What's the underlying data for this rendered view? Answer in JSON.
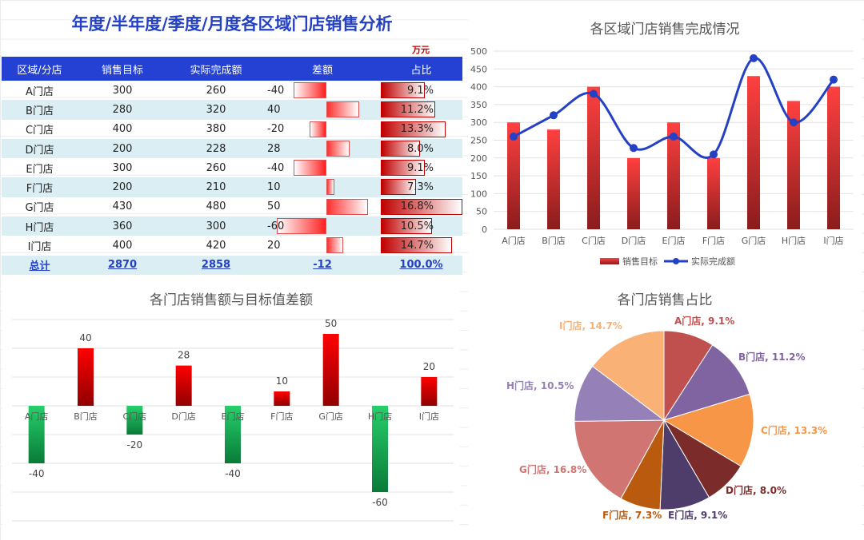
{
  "title": "年度/半年度/季度/月度各区域门店销售分析",
  "unit": "万元",
  "table": {
    "headers": [
      "区域/分店",
      "销售目标",
      "实际完成额",
      "差额",
      "占比"
    ],
    "rows": [
      {
        "store": "A门店",
        "target": "300",
        "actual": "260",
        "diff": "-40",
        "pct": "9.1%"
      },
      {
        "store": "B门店",
        "target": "280",
        "actual": "320",
        "diff": "40",
        "pct": "11.2%"
      },
      {
        "store": "C门店",
        "target": "400",
        "actual": "380",
        "diff": "-20",
        "pct": "13.3%"
      },
      {
        "store": "D门店",
        "target": "200",
        "actual": "228",
        "diff": "28",
        "pct": "8.0%"
      },
      {
        "store": "E门店",
        "target": "300",
        "actual": "260",
        "diff": "-40",
        "pct": "9.1%"
      },
      {
        "store": "F门店",
        "target": "200",
        "actual": "210",
        "diff": "10",
        "pct": "7.3%"
      },
      {
        "store": "G门店",
        "target": "430",
        "actual": "480",
        "diff": "50",
        "pct": "16.8%"
      },
      {
        "store": "H门店",
        "target": "360",
        "actual": "300",
        "diff": "-60",
        "pct": "10.5%"
      },
      {
        "store": "I门店",
        "target": "400",
        "actual": "420",
        "diff": "20",
        "pct": "14.7%"
      }
    ],
    "total": {
      "store": "总计",
      "target": "2870",
      "actual": "2858",
      "diff": "-12",
      "pct": "100.0%"
    }
  },
  "colors": {
    "header": "#2441d4",
    "title": "#2441c5",
    "alt_row": "#daeef4",
    "bar_red": "#ff3b3b",
    "line_blue": "#2441c5",
    "pos_bar": "#e00000",
    "neg_bar": "#1bb45a"
  },
  "chart_data": [
    {
      "type": "bar+line",
      "title": "各区域门店销售完成情况",
      "categories": [
        "A门店",
        "B门店",
        "C门店",
        "D门店",
        "E门店",
        "F门店",
        "G门店",
        "H门店",
        "I门店"
      ],
      "series": [
        {
          "name": "销售目标",
          "type": "bar",
          "values": [
            300,
            280,
            400,
            200,
            300,
            200,
            430,
            360,
            400
          ]
        },
        {
          "name": "实际完成额",
          "type": "line",
          "values": [
            260,
            320,
            380,
            228,
            260,
            210,
            480,
            300,
            420
          ]
        }
      ],
      "ylim": [
        0,
        500
      ],
      "yticks": [
        0,
        50,
        100,
        150,
        200,
        250,
        300,
        350,
        400,
        450,
        500
      ],
      "legend": "bottom"
    },
    {
      "type": "bar",
      "title": "各门店销售额与目标值差额",
      "categories": [
        "A门店",
        "B门店",
        "C门店",
        "D门店",
        "E门店",
        "F门店",
        "G门店",
        "H门店",
        "I门店"
      ],
      "values": [
        -40,
        40,
        -20,
        28,
        -40,
        10,
        50,
        -60,
        20
      ],
      "ylim": [
        -80,
        60
      ]
    },
    {
      "type": "pie",
      "title": "各门店销售占比",
      "labels": [
        "A门店",
        "B门店",
        "C门店",
        "D门店",
        "E门店",
        "F门店",
        "G门店",
        "H门店",
        "I门店"
      ],
      "values": [
        9.1,
        11.2,
        13.3,
        8.0,
        9.1,
        7.3,
        16.8,
        10.5,
        14.7
      ],
      "slice_labels": [
        "A门店, 9.1%",
        "B门店, 11.2%",
        "C门店, 13.3%",
        "D门店, 8.0%",
        "E门店, 9.1%",
        "F门店, 7.3%",
        "G门店, 16.8%",
        "H门店, 10.5%",
        "I门店, 14.7%"
      ],
      "colors": [
        "#c0504d",
        "#8064a2",
        "#f79646",
        "#7b2c2a",
        "#4e3c6a",
        "#b95a0e",
        "#d07572",
        "#9581b7",
        "#f9b175"
      ]
    }
  ]
}
